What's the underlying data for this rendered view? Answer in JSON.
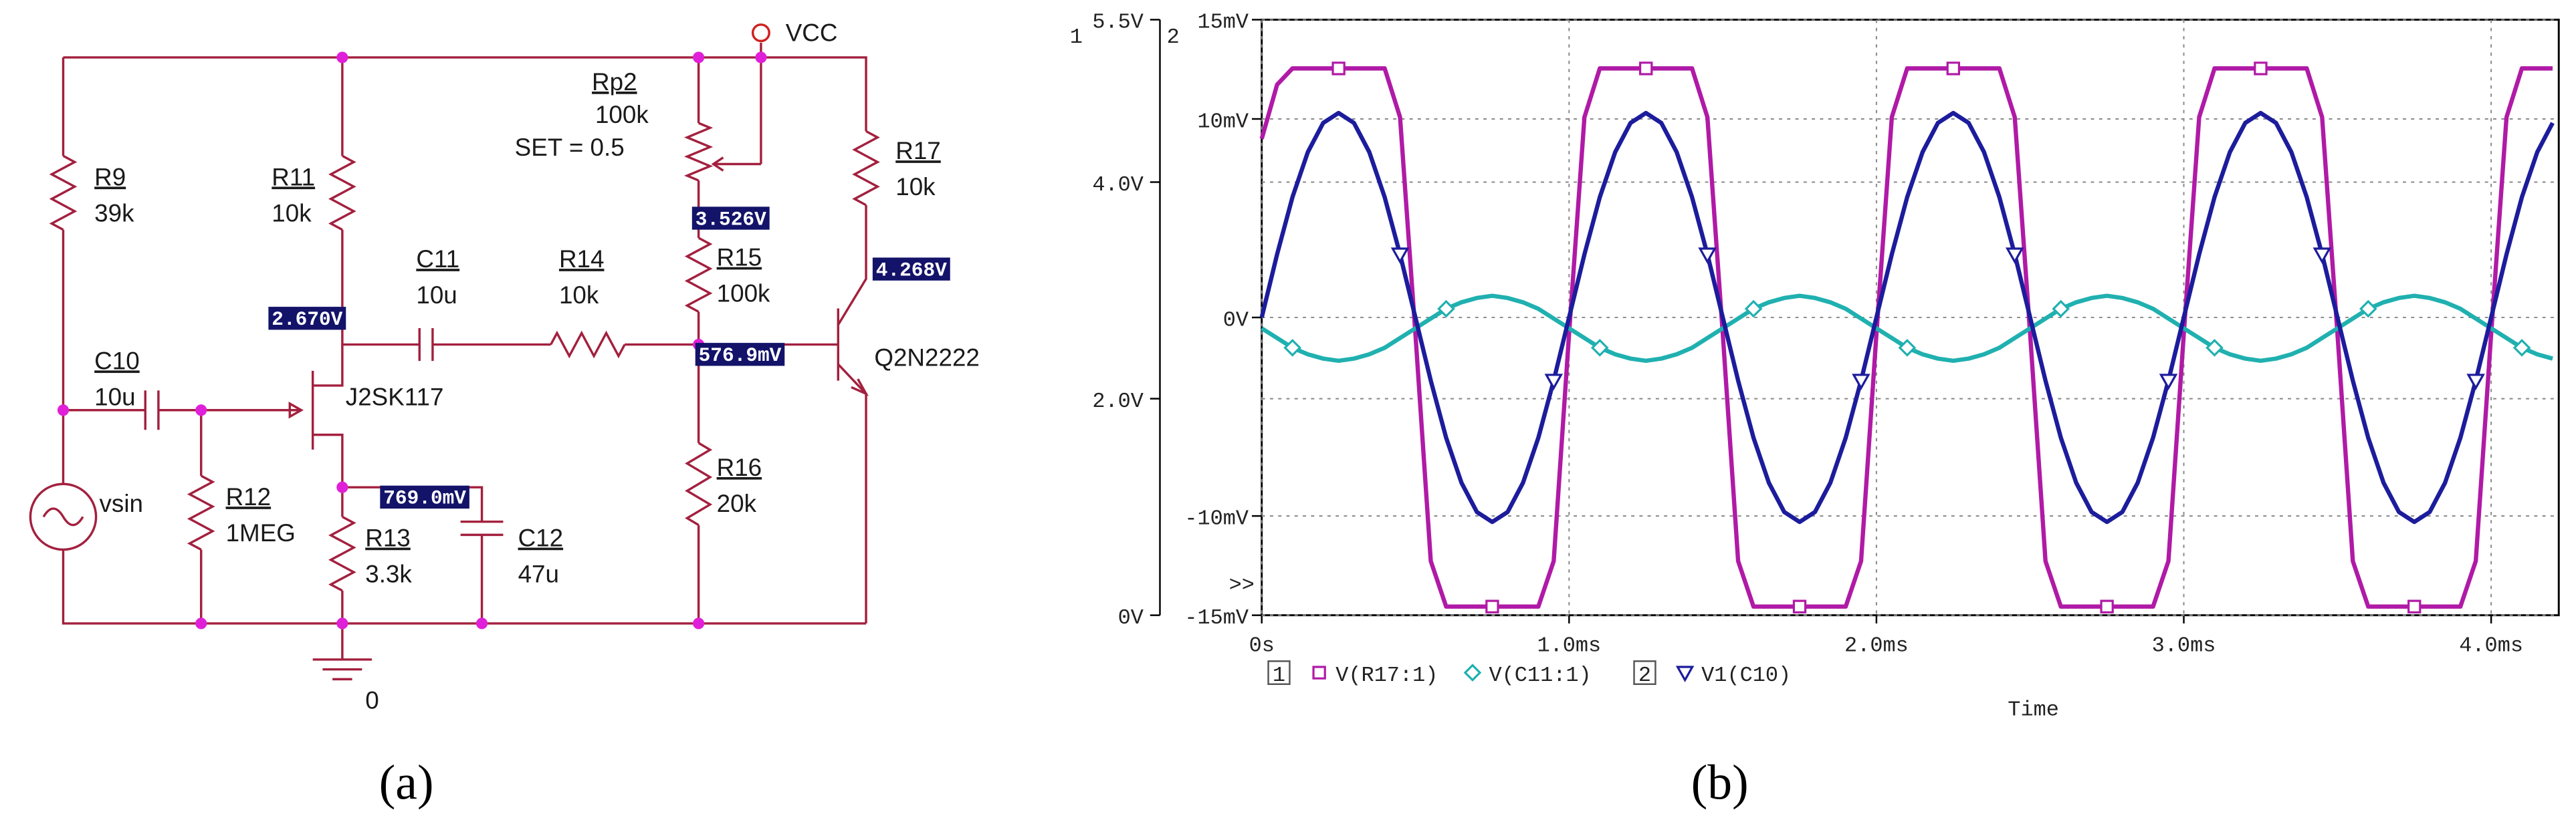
{
  "schematic": {
    "supply": "VCC",
    "ground": "0",
    "source": "vsin",
    "jfet": "J2SK117",
    "transistor": "Q2N2222",
    "potentiometer": {
      "ref": "Rp2",
      "value": "100k",
      "setting": "SET = 0.5"
    },
    "components": [
      {
        "ref": "R9",
        "value": "39k"
      },
      {
        "ref": "R11",
        "value": "10k"
      },
      {
        "ref": "C11",
        "value": "10u"
      },
      {
        "ref": "R14",
        "value": "10k"
      },
      {
        "ref": "R15",
        "value": "100k"
      },
      {
        "ref": "R17",
        "value": "10k"
      },
      {
        "ref": "C10",
        "value": "10u"
      },
      {
        "ref": "R12",
        "value": "1MEG"
      },
      {
        "ref": "R13",
        "value": "3.3k"
      },
      {
        "ref": "C12",
        "value": "47u"
      },
      {
        "ref": "R16",
        "value": "20k"
      }
    ],
    "node_voltages": [
      "2.670V",
      "3.526V",
      "4.268V",
      "576.9mV",
      "769.0mV"
    ]
  },
  "chart_data": {
    "type": "line",
    "xlabel": "Time",
    "axis_ids": [
      "1",
      "2"
    ],
    "overflow_mark": ">>",
    "grid": true,
    "xlim": [
      0,
      4.22
    ],
    "xticks": [
      {
        "value": 0,
        "label": "0s"
      },
      {
        "value": 1,
        "label": "1.0ms"
      },
      {
        "value": 2,
        "label": "2.0ms"
      },
      {
        "value": 3,
        "label": "3.0ms"
      },
      {
        "value": 4,
        "label": "4.0ms"
      }
    ],
    "ylim": [
      0,
      5.5
    ],
    "yticks": [
      {
        "value": 0,
        "label": "0V"
      },
      {
        "value": 2,
        "label": "2.0V"
      },
      {
        "value": 4,
        "label": "4.0V"
      },
      {
        "value": 5.5,
        "label": "5.5V"
      }
    ],
    "y2lim": [
      -15,
      15
    ],
    "y2ticks": [
      {
        "value": -15,
        "label": "-15mV"
      },
      {
        "value": -10,
        "label": "-10mV"
      },
      {
        "value": 0,
        "label": "0V"
      },
      {
        "value": 10,
        "label": "10mV"
      },
      {
        "value": 15,
        "label": "15mV"
      }
    ],
    "x": [
      0,
      0.05,
      0.1,
      0.15,
      0.2,
      0.25,
      0.3,
      0.35,
      0.4,
      0.45,
      0.5,
      0.55,
      0.6,
      0.65,
      0.7,
      0.75,
      0.8,
      0.85,
      0.9,
      0.95,
      1,
      1.05,
      1.1,
      1.15,
      1.2,
      1.25,
      1.3,
      1.35,
      1.4,
      1.45,
      1.5,
      1.55,
      1.6,
      1.65,
      1.7,
      1.75,
      1.8,
      1.85,
      1.9,
      1.95,
      2,
      2.05,
      2.1,
      2.15,
      2.2,
      2.25,
      2.3,
      2.35,
      2.4,
      2.45,
      2.5,
      2.55,
      2.6,
      2.65,
      2.7,
      2.75,
      2.8,
      2.85,
      2.9,
      2.95,
      3,
      3.05,
      3.1,
      3.15,
      3.2,
      3.25,
      3.3,
      3.35,
      3.4,
      3.45,
      3.5,
      3.55,
      3.6,
      3.65,
      3.7,
      3.75,
      3.8,
      3.85,
      3.9,
      3.95,
      4,
      4.05,
      4.1,
      4.15,
      4.2
    ],
    "series": [
      {
        "name": "V(R17:1)",
        "color": "#b01aa6",
        "marker": "square",
        "values": [
          4.4,
          4.9,
          5.05,
          5.05,
          5.05,
          5.05,
          5.05,
          5.05,
          5.05,
          4.6,
          2.6,
          0.5,
          0.08,
          0.08,
          0.08,
          0.08,
          0.08,
          0.08,
          0.08,
          0.5,
          2.6,
          4.6,
          5.05,
          5.05,
          5.05,
          5.05,
          5.05,
          5.05,
          5.05,
          4.6,
          2.6,
          0.5,
          0.08,
          0.08,
          0.08,
          0.08,
          0.08,
          0.08,
          0.08,
          0.5,
          2.6,
          4.6,
          5.05,
          5.05,
          5.05,
          5.05,
          5.05,
          5.05,
          5.05,
          4.6,
          2.6,
          0.5,
          0.08,
          0.08,
          0.08,
          0.08,
          0.08,
          0.08,
          0.08,
          0.5,
          2.6,
          4.6,
          5.05,
          5.05,
          5.05,
          5.05,
          5.05,
          5.05,
          5.05,
          4.6,
          2.6,
          0.5,
          0.08,
          0.08,
          0.08,
          0.08,
          0.08,
          0.08,
          0.08,
          0.5,
          2.6,
          4.6,
          5.05,
          5.05,
          5.05
        ]
      },
      {
        "name": "V(C11:1)",
        "color": "#20b0b0",
        "marker": "diamond",
        "values": [
          2.65,
          2.56,
          2.47,
          2.41,
          2.37,
          2.35,
          2.37,
          2.41,
          2.47,
          2.56,
          2.65,
          2.74,
          2.83,
          2.89,
          2.93,
          2.95,
          2.93,
          2.89,
          2.83,
          2.74,
          2.65,
          2.56,
          2.47,
          2.41,
          2.37,
          2.35,
          2.37,
          2.41,
          2.47,
          2.56,
          2.65,
          2.74,
          2.83,
          2.89,
          2.93,
          2.95,
          2.93,
          2.89,
          2.83,
          2.74,
          2.65,
          2.56,
          2.47,
          2.41,
          2.37,
          2.35,
          2.37,
          2.41,
          2.47,
          2.56,
          2.65,
          2.74,
          2.83,
          2.89,
          2.93,
          2.95,
          2.93,
          2.89,
          2.83,
          2.74,
          2.65,
          2.56,
          2.47,
          2.41,
          2.37,
          2.35,
          2.37,
          2.41,
          2.47,
          2.56,
          2.65,
          2.74,
          2.83,
          2.89,
          2.93,
          2.95,
          2.93,
          2.89,
          2.83,
          2.74,
          2.65,
          2.56,
          2.47,
          2.41,
          2.37
        ]
      },
      {
        "name": "V1(C10)",
        "color": "#1c1c9c",
        "marker": "triangle",
        "axis": "y2",
        "values": [
          0,
          3.18,
          6.06,
          8.33,
          9.8,
          10.3,
          9.8,
          8.33,
          6.06,
          3.18,
          0,
          -3.18,
          -6.06,
          -8.33,
          -9.8,
          -10.3,
          -9.8,
          -8.33,
          -6.06,
          -3.18,
          0,
          3.18,
          6.06,
          8.33,
          9.8,
          10.3,
          9.8,
          8.33,
          6.06,
          3.18,
          0,
          -3.18,
          -6.06,
          -8.33,
          -9.8,
          -10.3,
          -9.8,
          -8.33,
          -6.06,
          -3.18,
          0,
          3.18,
          6.06,
          8.33,
          9.8,
          10.3,
          9.8,
          8.33,
          6.06,
          3.18,
          0,
          -3.18,
          -6.06,
          -8.33,
          -9.8,
          -10.3,
          -9.8,
          -8.33,
          -6.06,
          -3.18,
          0,
          3.18,
          6.06,
          8.33,
          9.8,
          10.3,
          9.8,
          8.33,
          6.06,
          3.18,
          0,
          -3.18,
          -6.06,
          -8.33,
          -9.8,
          -10.3,
          -9.8,
          -8.33,
          -6.06,
          -3.18,
          0,
          3.18,
          6.06,
          8.33,
          9.8
        ]
      }
    ]
  },
  "captions": [
    "(a)",
    "(b)"
  ]
}
